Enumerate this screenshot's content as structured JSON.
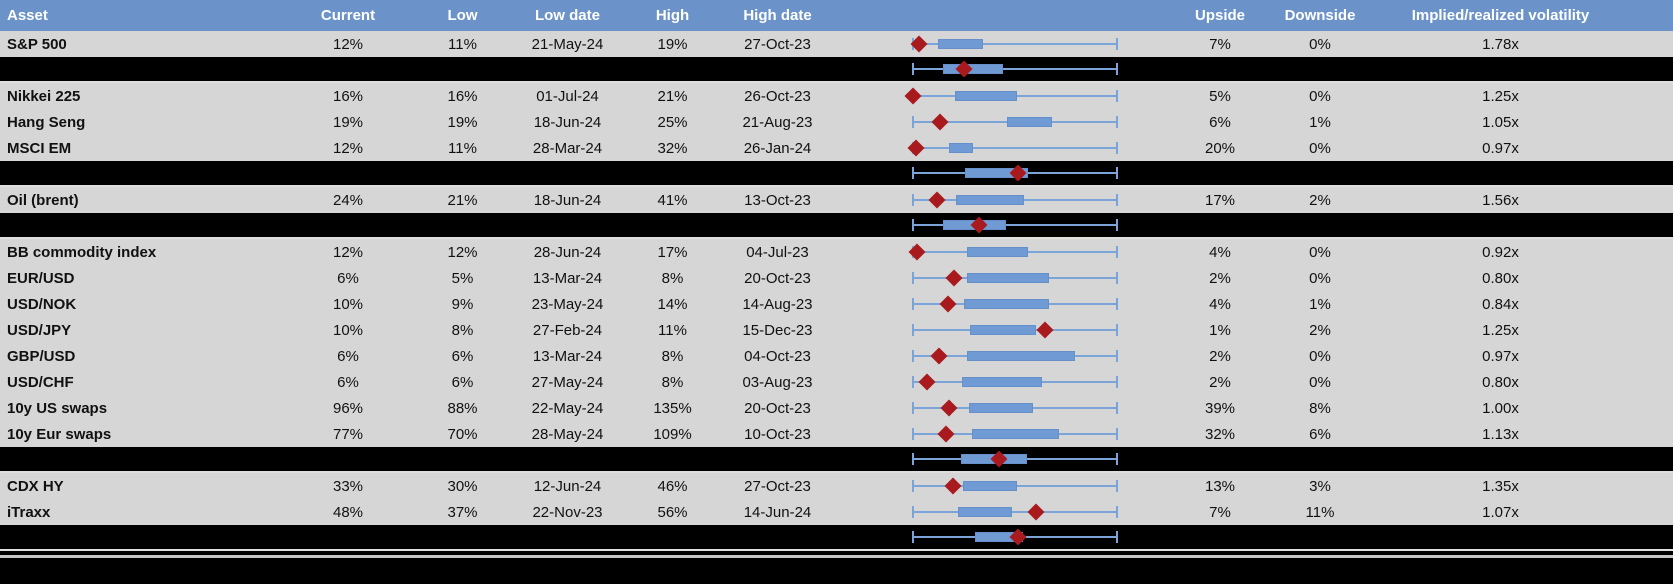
{
  "colors": {
    "header_bg": "#6b93c9",
    "header_text": "#ffffff",
    "row_bg": "#d6d6d6",
    "separator_bg": "#000000",
    "box_fill": "#6f9ad4",
    "whisker": "#7ba4d9",
    "diamond": "#a81a1d",
    "text": "#111111"
  },
  "chart_data": {
    "type": "table",
    "columns": [
      "Asset",
      "Current",
      "Low",
      "Low date",
      "High",
      "High date",
      "",
      "Upside",
      "Downside",
      "Implied/realized volatility"
    ],
    "boxplot_note": "Each row has a box-whisker range chart: whiskers span the low-high range (normalized 0 to 1), box = interquartile band, red diamond = current level. Separator rows show group aggregate plots.",
    "boxplot_range": [
      0,
      1
    ],
    "rows": [
      {
        "type": "data",
        "asset": "S&P 500",
        "current": "12%",
        "low": "11%",
        "low_date": "21-May-24",
        "high": "19%",
        "high_date": "27-Oct-23",
        "upside": "7%",
        "downside": "0%",
        "vol_ratio": "1.78x",
        "box": [
          0.123,
          0.343
        ],
        "diamond": 0.029
      },
      {
        "type": "separator",
        "box": [
          0.147,
          0.441
        ],
        "diamond": 0.25
      },
      {
        "type": "data",
        "asset": "Nikkei 225",
        "current": "16%",
        "low": "16%",
        "low_date": "01-Jul-24",
        "high": "21%",
        "high_date": "26-Oct-23",
        "upside": "5%",
        "downside": "0%",
        "vol_ratio": "1.25x",
        "box": [
          0.206,
          0.51
        ],
        "diamond": 0.0
      },
      {
        "type": "data",
        "asset": "Hang Seng",
        "current": "19%",
        "low": "19%",
        "low_date": "18-Jun-24",
        "high": "25%",
        "high_date": "21-Aug-23",
        "upside": "6%",
        "downside": "1%",
        "vol_ratio": "1.05x",
        "box": [
          0.461,
          0.681
        ],
        "diamond": 0.132
      },
      {
        "type": "data",
        "asset": "MSCI EM",
        "current": "12%",
        "low": "11%",
        "low_date": "28-Mar-24",
        "high": "32%",
        "high_date": "26-Jan-24",
        "upside": "20%",
        "downside": "0%",
        "vol_ratio": "0.97x",
        "box": [
          0.176,
          0.294
        ],
        "diamond": 0.015
      },
      {
        "type": "separator",
        "box": [
          0.255,
          0.564
        ],
        "diamond": 0.515
      },
      {
        "type": "data",
        "asset": "Oil (brent)",
        "current": "24%",
        "low": "21%",
        "low_date": "18-Jun-24",
        "high": "41%",
        "high_date": "13-Oct-23",
        "upside": "17%",
        "downside": "2%",
        "vol_ratio": "1.56x",
        "box": [
          0.211,
          0.544
        ],
        "diamond": 0.118
      },
      {
        "type": "separator",
        "box": [
          0.147,
          0.456
        ],
        "diamond": 0.324
      },
      {
        "type": "data",
        "asset": "BB commodity index",
        "current": "12%",
        "low": "12%",
        "low_date": "28-Jun-24",
        "high": "17%",
        "high_date": "04-Jul-23",
        "upside": "4%",
        "downside": "0%",
        "vol_ratio": "0.92x",
        "box": [
          0.265,
          0.564
        ],
        "diamond": 0.02
      },
      {
        "type": "data",
        "asset": "EUR/USD",
        "current": "6%",
        "low": "5%",
        "low_date": "13-Mar-24",
        "high": "8%",
        "high_date": "20-Oct-23",
        "upside": "2%",
        "downside": "0%",
        "vol_ratio": "0.80x",
        "box": [
          0.265,
          0.667
        ],
        "diamond": 0.201
      },
      {
        "type": "data",
        "asset": "USD/NOK",
        "current": "10%",
        "low": "9%",
        "low_date": "23-May-24",
        "high": "14%",
        "high_date": "14-Aug-23",
        "upside": "4%",
        "downside": "1%",
        "vol_ratio": "0.84x",
        "box": [
          0.25,
          0.667
        ],
        "diamond": 0.172
      },
      {
        "type": "data",
        "asset": "USD/JPY",
        "current": "10%",
        "low": "8%",
        "low_date": "27-Feb-24",
        "high": "11%",
        "high_date": "15-Dec-23",
        "upside": "1%",
        "downside": "2%",
        "vol_ratio": "1.25x",
        "box": [
          0.279,
          0.603
        ],
        "diamond": 0.647
      },
      {
        "type": "data",
        "asset": "GBP/USD",
        "current": "6%",
        "low": "6%",
        "low_date": "13-Mar-24",
        "high": "8%",
        "high_date": "04-Oct-23",
        "upside": "2%",
        "downside": "0%",
        "vol_ratio": "0.97x",
        "box": [
          0.265,
          0.794
        ],
        "diamond": 0.127
      },
      {
        "type": "data",
        "asset": "USD/CHF",
        "current": "6%",
        "low": "6%",
        "low_date": "27-May-24",
        "high": "8%",
        "high_date": "03-Aug-23",
        "upside": "2%",
        "downside": "0%",
        "vol_ratio": "0.80x",
        "box": [
          0.24,
          0.632
        ],
        "diamond": 0.069
      },
      {
        "type": "data",
        "asset": "10y US swaps",
        "current": "96%",
        "low": "88%",
        "low_date": "22-May-24",
        "high": "135%",
        "high_date": "20-Oct-23",
        "upside": "39%",
        "downside": "8%",
        "vol_ratio": "1.00x",
        "box": [
          0.275,
          0.588
        ],
        "diamond": 0.176
      },
      {
        "type": "data",
        "asset": "10y Eur swaps",
        "current": "77%",
        "low": "70%",
        "low_date": "28-May-24",
        "high": "109%",
        "high_date": "10-Oct-23",
        "upside": "32%",
        "downside": "6%",
        "vol_ratio": "1.13x",
        "box": [
          0.289,
          0.716
        ],
        "diamond": 0.162
      },
      {
        "type": "separator",
        "box": [
          0.235,
          0.559
        ],
        "diamond": 0.422
      },
      {
        "type": "data",
        "asset": "CDX HY",
        "current": "33%",
        "low": "30%",
        "low_date": "12-Jun-24",
        "high": "46%",
        "high_date": "27-Oct-23",
        "upside": "13%",
        "downside": "3%",
        "vol_ratio": "1.35x",
        "box": [
          0.245,
          0.51
        ],
        "diamond": 0.196
      },
      {
        "type": "data",
        "asset": "iTraxx",
        "current": "48%",
        "low": "37%",
        "low_date": "22-Nov-23",
        "high": "56%",
        "high_date": "14-Jun-24",
        "upside": "7%",
        "downside": "11%",
        "vol_ratio": "1.07x",
        "box": [
          0.221,
          0.485
        ],
        "diamond": 0.603
      },
      {
        "type": "separator",
        "box": [
          0.304,
          0.539
        ],
        "diamond": 0.515
      }
    ]
  }
}
